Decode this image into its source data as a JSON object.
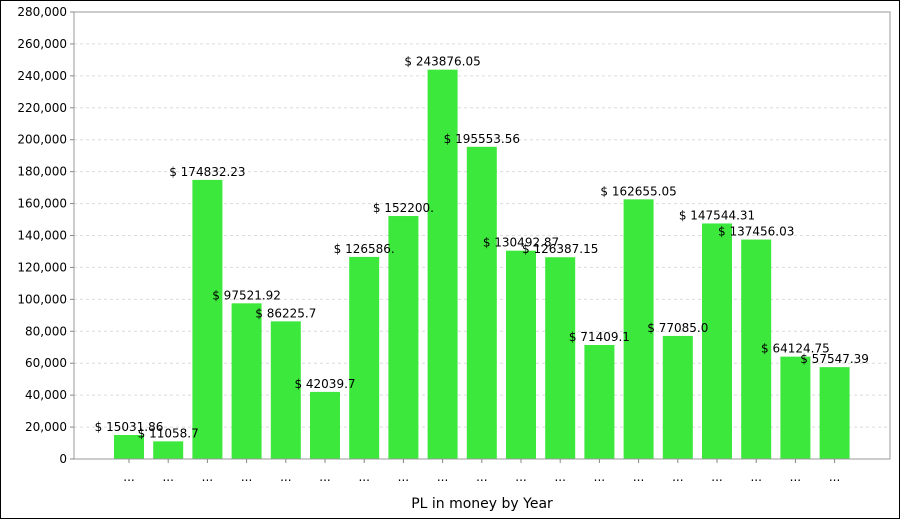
{
  "chart_data": {
    "type": "bar",
    "xlabel": "PL in money by Year",
    "ylabel": "",
    "ylim": [
      0,
      280000
    ],
    "y_tick_step": 20000,
    "y_tick_labels": [
      "0",
      "20,000",
      "40,000",
      "60,000",
      "80,000",
      "100,000",
      "120,000",
      "140,000",
      "160,000",
      "180,000",
      "200,000",
      "220,000",
      "240,000",
      "260,000",
      "280,000"
    ],
    "grid": true,
    "legend": "none",
    "bar_color": "#3de83d",
    "categories": [
      "...",
      "...",
      "...",
      "...",
      "...",
      "...",
      "...",
      "...",
      "...",
      "...",
      "...",
      "...",
      "...",
      "...",
      "...",
      "...",
      "...",
      "...",
      "..."
    ],
    "values": [
      15031.86,
      11058.7,
      174832.23,
      97521.92,
      86225.7,
      42039.7,
      126586.0,
      152200.0,
      243876.05,
      195553.56,
      130492.87,
      126387.15,
      71409.1,
      162655.05,
      77085.0,
      147544.31,
      137456.03,
      64124.75,
      57547.39
    ],
    "data_labels": [
      "$ 15031.86",
      "$ 11058.7",
      "$ 174832.23",
      "$ 97521.92",
      "$ 86225.7",
      "$ 42039.7",
      "$ 126586.",
      "$ 152200.",
      "$ 243876.05",
      "$ 195553.56",
      "$ 130492.87",
      "$ 126387.15",
      "$ 71409.1",
      "$ 162655.05",
      "$ 77085.0",
      "$ 147544.31",
      "$ 137456.03",
      "$ 64124.75",
      "$ 57547.39"
    ]
  }
}
